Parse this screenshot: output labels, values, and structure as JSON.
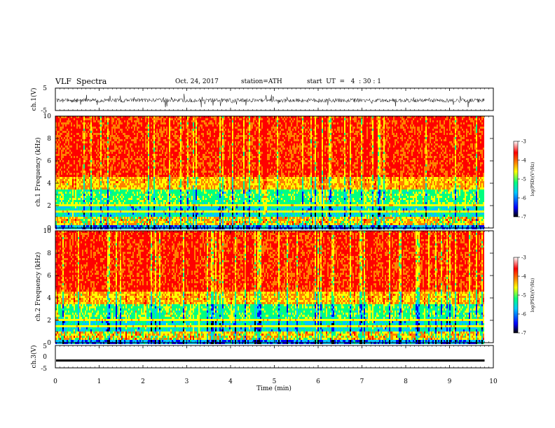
{
  "header": {
    "title": "VLF  Spectra",
    "date": "Oct. 24, 2017",
    "station": "station=ATH",
    "start": "start  UT  =   4  : 30 : 1"
  },
  "colors": {
    "spectrogram_ramp": [
      "#000000",
      "#0000ff",
      "#00c8ff",
      "#00ff7f",
      "#ffff00",
      "#ff8000",
      "#ff0000",
      "#ffffff"
    ]
  },
  "chart_data": [
    {
      "type": "line",
      "ylabel": "ch.1(V)",
      "ylim": [
        -5,
        5
      ],
      "yticks": [
        "5",
        "-5"
      ],
      "xlim": [
        0,
        10
      ],
      "series": [
        {
          "values_mean": -0.5,
          "values_range": [
            -3.5,
            2.5
          ]
        }
      ]
    },
    {
      "type": "heatmap",
      "ylabel": "ch.1 Frequency (kHz)",
      "ylim": [
        0,
        10
      ],
      "yticks": [
        "10",
        "8",
        "6",
        "4",
        "2",
        "0"
      ],
      "xlim": [
        0,
        9.8
      ],
      "colorbar": {
        "label": "log(PSD)(V²/Hz)",
        "range": [
          -7,
          -3
        ],
        "ticks": [
          "-3",
          "-4",
          "-5",
          "-6",
          "-7"
        ]
      }
    },
    {
      "type": "heatmap",
      "ylabel": "ch.2 Frequency (kHz)",
      "ylim": [
        0,
        10
      ],
      "yticks": [
        "10",
        "8",
        "6",
        "4",
        "2",
        "0"
      ],
      "xlim": [
        0,
        9.8
      ],
      "colorbar": {
        "label": "log(PSD)(V²/Hz)",
        "range": [
          -7,
          -3
        ],
        "ticks": [
          "-3",
          "-4",
          "-5",
          "-6",
          "-7"
        ]
      }
    },
    {
      "type": "line",
      "ylabel": "ch.3(V)",
      "ylim": [
        -5,
        5
      ],
      "yticks": [
        "5",
        "0",
        "-5"
      ],
      "xlim": [
        0,
        10
      ],
      "series": [
        {
          "values_mean": -1.7
        }
      ]
    }
  ],
  "xaxis": {
    "label": "Time  (min)",
    "ticks": [
      "0",
      "1",
      "2",
      "3",
      "4",
      "5",
      "6",
      "7",
      "8",
      "9",
      "10"
    ]
  }
}
